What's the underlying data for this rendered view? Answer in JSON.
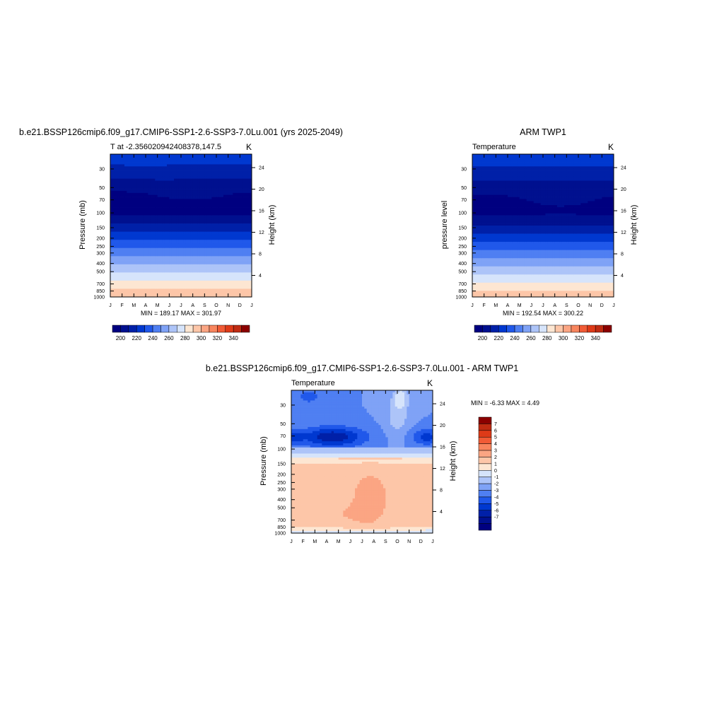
{
  "chart_data": [
    {
      "type": "heatmap",
      "title": "b.e21.BSSP126cmip6.f09_g17.CMIP6-SSP1-2.6-SSP3-7.0Lu.001 (yrs 2025-2049)",
      "subtitle_left": "T at -2.356020942408378,147.5",
      "subtitle_right": "K",
      "xlabel": "",
      "ylabel": "Pressure (mb)",
      "ylabel_right": "Height (km)",
      "x_ticks": [
        "J",
        "F",
        "M",
        "A",
        "M",
        "J",
        "J",
        "A",
        "S",
        "O",
        "N",
        "D",
        "J"
      ],
      "y_ticks": [
        30,
        50,
        70,
        100,
        150,
        200,
        250,
        300,
        400,
        500,
        700,
        850,
        1000
      ],
      "y_scale": "log",
      "ylim": [
        1000,
        20
      ],
      "height_ticks_km": [
        4,
        8,
        12,
        16,
        20,
        24
      ],
      "stats_text": "MIN = 189.17   MAX = 301.97",
      "min": 189.17,
      "max": 301.97,
      "contour_levels": [
        200,
        210,
        220,
        230,
        240,
        250,
        260,
        270,
        280,
        290,
        300,
        310,
        320,
        330,
        340
      ],
      "colorbar_labels": [
        200,
        220,
        240,
        260,
        280,
        300,
        320,
        340
      ],
      "colorbar_orientation": "horizontal"
    },
    {
      "type": "heatmap",
      "title": "ARM TWP1",
      "subtitle_left": "Temperature",
      "subtitle_right": "K",
      "ylabel": "pressure level",
      "ylabel_right": "Height (km)",
      "x_ticks": [
        "J",
        "F",
        "M",
        "A",
        "M",
        "J",
        "J",
        "A",
        "S",
        "O",
        "N",
        "D",
        "J"
      ],
      "y_ticks": [
        30,
        50,
        70,
        100,
        150,
        200,
        250,
        300,
        400,
        500,
        700,
        850,
        1000
      ],
      "y_scale": "log",
      "ylim": [
        1000,
        20
      ],
      "height_ticks_km": [
        4,
        8,
        12,
        16,
        20,
        24
      ],
      "stats_text": "MIN = 192.54   MAX = 300.22",
      "min": 192.54,
      "max": 300.22,
      "contour_levels": [
        200,
        210,
        220,
        230,
        240,
        250,
        260,
        270,
        280,
        290,
        300,
        310,
        320,
        330,
        340
      ],
      "colorbar_labels": [
        200,
        220,
        240,
        260,
        280,
        300,
        320,
        340
      ],
      "colorbar_orientation": "horizontal"
    },
    {
      "type": "heatmap",
      "title": "b.e21.BSSP126cmip6.f09_g17.CMIP6-SSP1-2.6-SSP3-7.0Lu.001 - ARM TWP1",
      "subtitle_left": "Temperature",
      "subtitle_right": "K",
      "ylabel": "Pressure (mb)",
      "ylabel_right": "Height (km)",
      "x_ticks": [
        "J",
        "F",
        "M",
        "A",
        "M",
        "J",
        "J",
        "A",
        "S",
        "O",
        "N",
        "D",
        "J"
      ],
      "y_ticks": [
        30,
        50,
        70,
        100,
        150,
        200,
        250,
        300,
        400,
        500,
        700,
        850,
        1000
      ],
      "y_scale": "log",
      "ylim": [
        1000,
        20
      ],
      "height_ticks_km": [
        4,
        8,
        12,
        16,
        20,
        24
      ],
      "stats_text": "MIN =  -6.33  MAX =   4.49",
      "min": -6.33,
      "max": 4.49,
      "contour_levels": [
        -7,
        -6,
        -5,
        -4,
        -3,
        -2,
        -1,
        0,
        1,
        2,
        3,
        4,
        5,
        6,
        7
      ],
      "colorbar_labels": [
        7,
        6,
        5,
        4,
        3,
        2,
        1,
        0,
        -1,
        -2,
        -3,
        -4,
        -5,
        -6,
        -7
      ],
      "colorbar_orientation": "vertical"
    }
  ],
  "palette": [
    "#000080",
    "#00108f",
    "#0020a8",
    "#0038d0",
    "#2058ea",
    "#4f7ff2",
    "#7fa2f6",
    "#adc4f8",
    "#d6e4fb",
    "#fde6d2",
    "#fdc6a8",
    "#fba583",
    "#f8855e",
    "#f15b36",
    "#de3a18",
    "#bf2b12",
    "#8b0000"
  ]
}
